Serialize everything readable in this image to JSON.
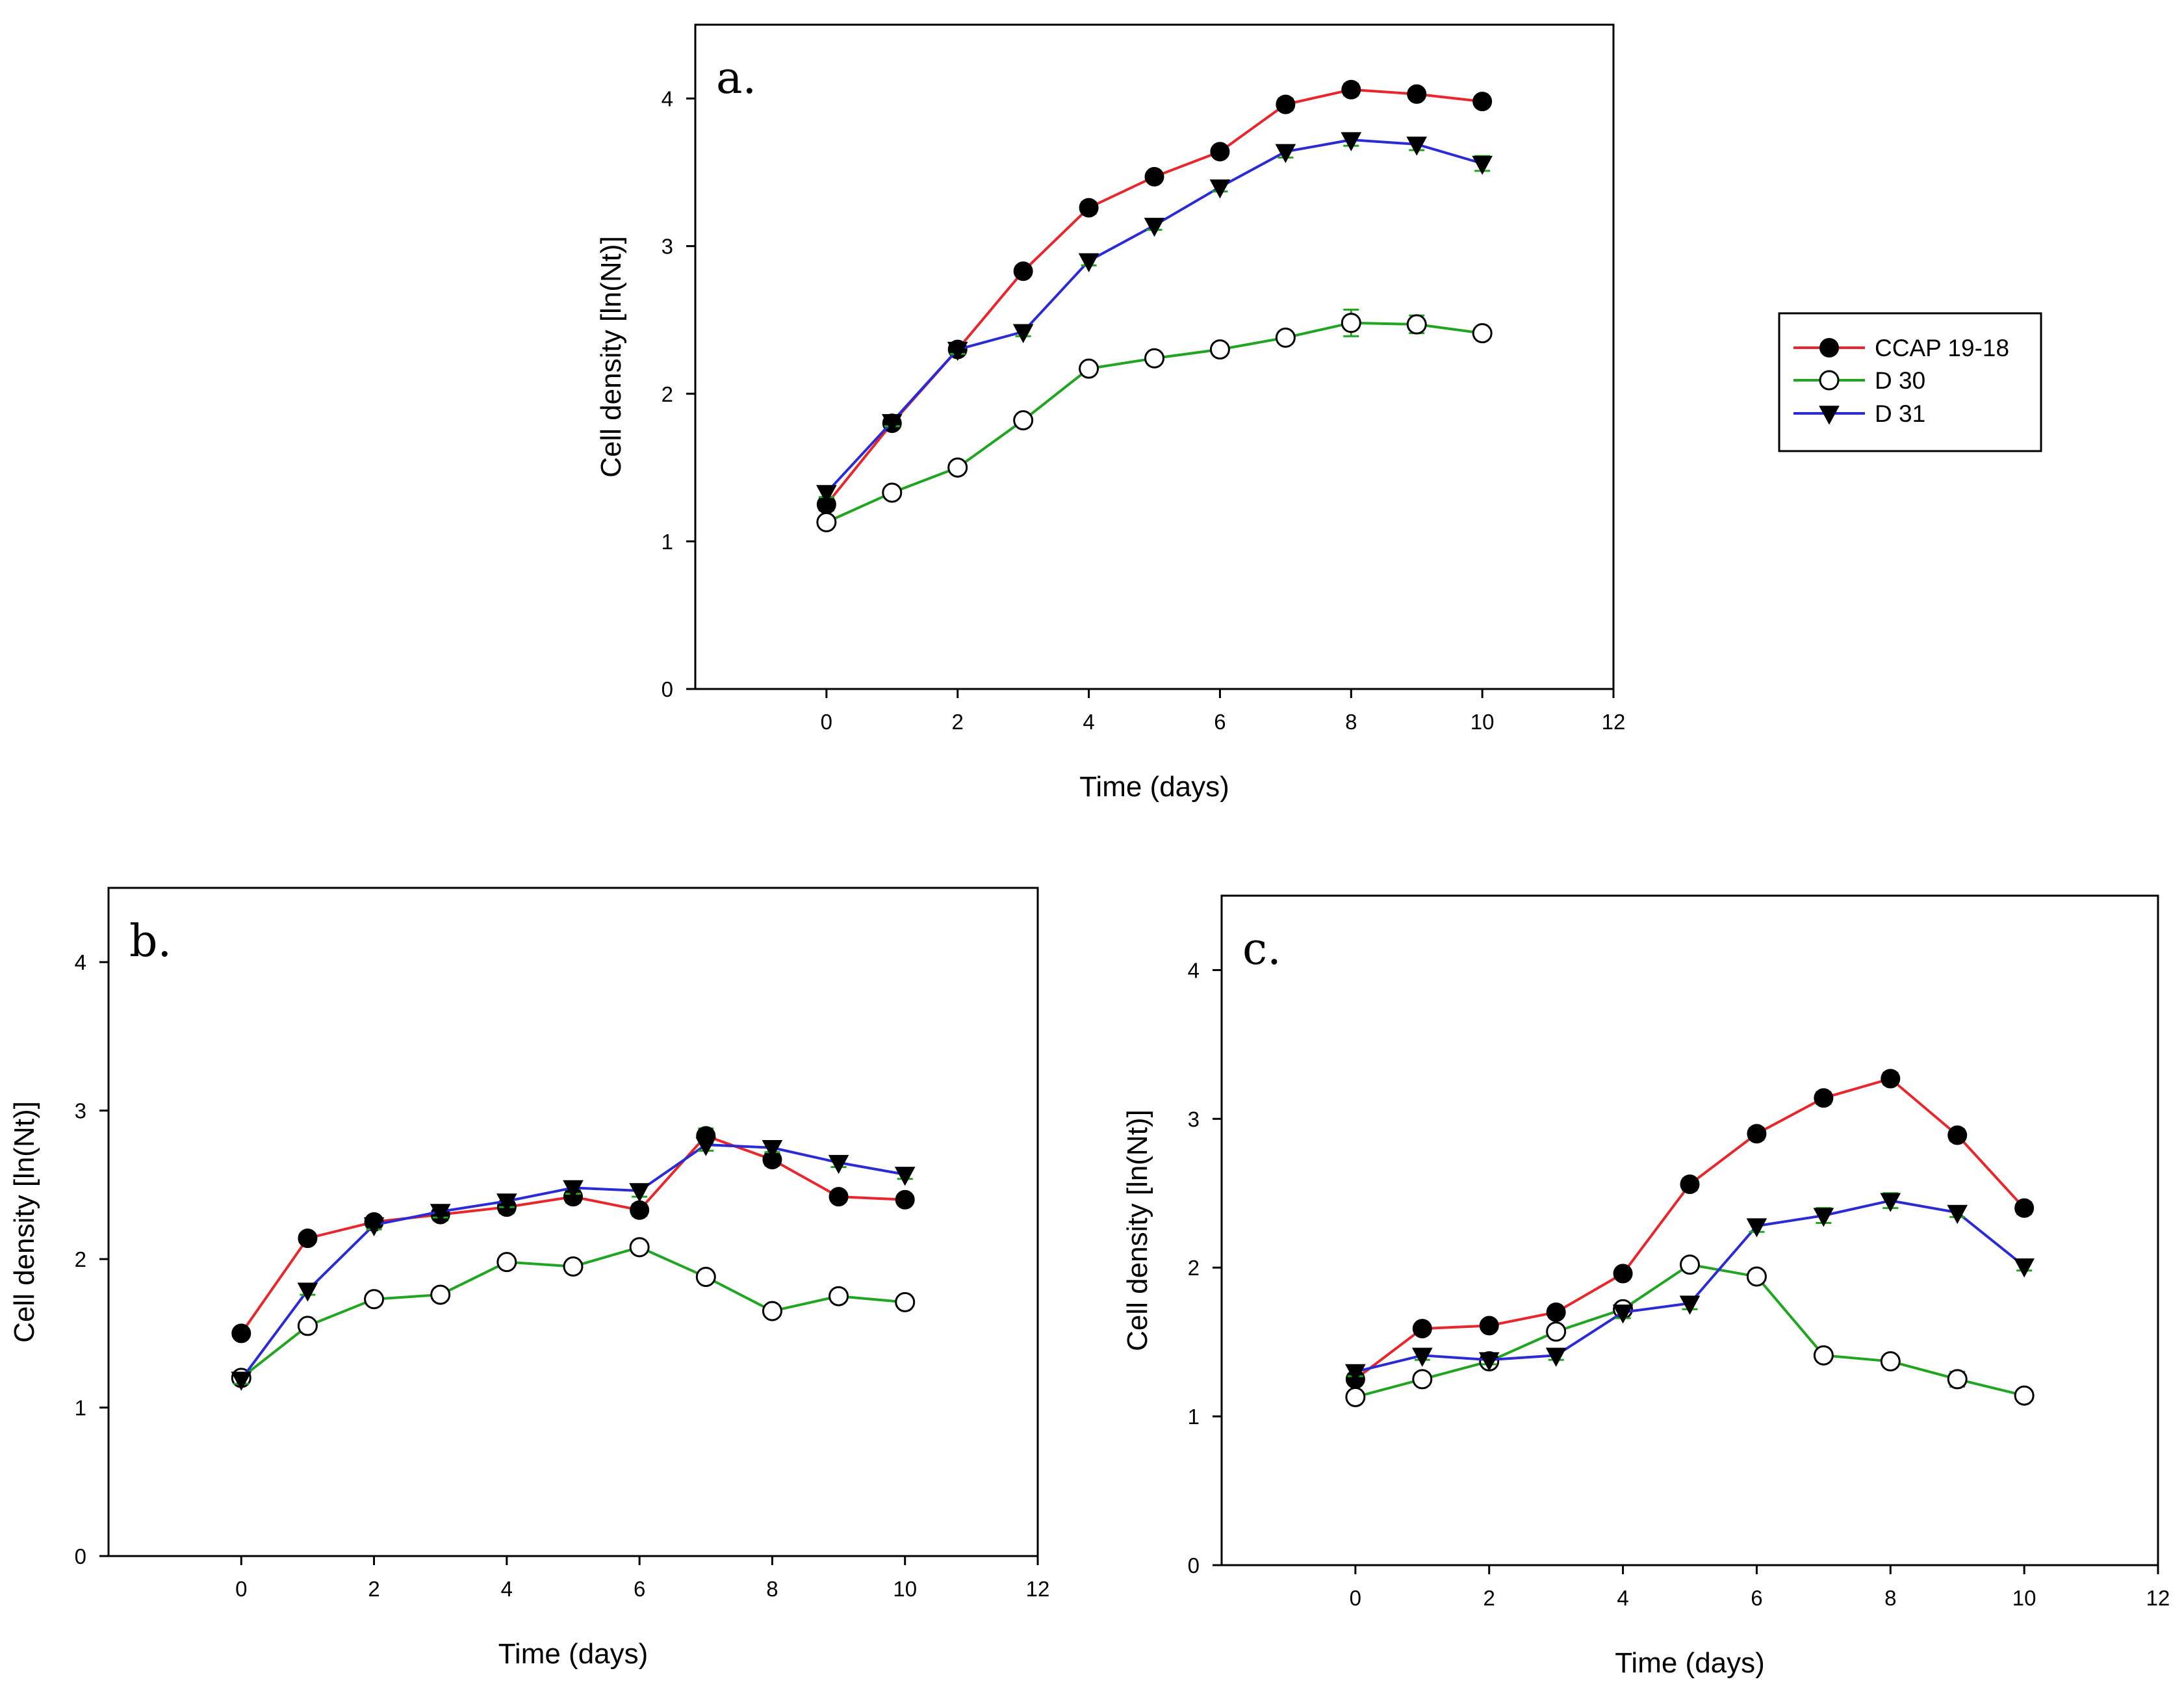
{
  "chart_data": [
    {
      "type": "line",
      "panel_label": "a.",
      "xlabel": "Time (days)",
      "ylabel": "Cell density [ln(Nt)]",
      "xlim": [
        -2,
        12
      ],
      "ylim": [
        0,
        4.5
      ],
      "xticks": [
        0,
        2,
        4,
        6,
        8,
        10,
        12
      ],
      "yticks": [
        0,
        1,
        2,
        3,
        4
      ],
      "x": [
        0,
        1,
        2,
        3,
        4,
        5,
        6,
        7,
        8,
        9,
        10
      ],
      "series": [
        {
          "name": "CCAP 19-18",
          "color": "#e8262b",
          "marker": "filled-circle",
          "values": [
            1.25,
            1.8,
            2.3,
            2.83,
            3.26,
            3.47,
            3.64,
            3.96,
            4.06,
            4.03,
            3.98
          ],
          "errors": [
            0.04,
            0.03,
            0.03,
            0.03,
            0.04,
            0.03,
            0.03,
            0.04,
            0.04,
            0.03,
            0.03
          ]
        },
        {
          "name": "D 30",
          "color": "#1fa51f",
          "marker": "open-circle",
          "values": [
            1.13,
            1.33,
            1.5,
            1.82,
            2.17,
            2.24,
            2.3,
            2.38,
            2.48,
            2.47,
            2.41
          ],
          "errors": [
            0.03,
            0.03,
            0.03,
            0.03,
            0.03,
            0.03,
            0.03,
            0.03,
            0.09,
            0.06,
            0.03
          ]
        },
        {
          "name": "D 31",
          "color": "#2b2bd6",
          "marker": "triangle-down",
          "values": [
            1.33,
            1.81,
            2.3,
            2.42,
            2.9,
            3.14,
            3.4,
            3.64,
            3.72,
            3.69,
            3.56
          ],
          "errors": [
            0.03,
            0.03,
            0.03,
            0.03,
            0.03,
            0.03,
            0.03,
            0.04,
            0.04,
            0.04,
            0.05
          ]
        }
      ]
    },
    {
      "type": "line",
      "panel_label": "b.",
      "xlabel": "Time (days)",
      "ylabel": "Cell density [ln(Nt)]",
      "xlim": [
        -2,
        12
      ],
      "ylim": [
        0,
        4.5
      ],
      "xticks": [
        0,
        2,
        4,
        6,
        8,
        10,
        12
      ],
      "yticks": [
        0,
        1,
        2,
        3,
        4
      ],
      "x": [
        0,
        1,
        2,
        3,
        4,
        5,
        6,
        7,
        8,
        9,
        10
      ],
      "series": [
        {
          "name": "CCAP 19-18",
          "color": "#e8262b",
          "marker": "filled-circle",
          "values": [
            1.5,
            2.14,
            2.25,
            2.3,
            2.35,
            2.42,
            2.33,
            2.83,
            2.67,
            2.42,
            2.4
          ],
          "errors": [
            0.03,
            0.03,
            0.03,
            0.04,
            0.04,
            0.04,
            0.04,
            0.05,
            0.04,
            0.03,
            0.03
          ]
        },
        {
          "name": "D 30",
          "color": "#1fa51f",
          "marker": "open-circle",
          "values": [
            1.2,
            1.55,
            1.73,
            1.76,
            1.98,
            1.95,
            2.08,
            1.88,
            1.65,
            1.75,
            1.71
          ],
          "errors": [
            0.03,
            0.03,
            0.03,
            0.04,
            0.03,
            0.04,
            0.03,
            0.03,
            0.03,
            0.03,
            0.03
          ]
        },
        {
          "name": "D 31",
          "color": "#2b2bd6",
          "marker": "triangle-down",
          "values": [
            1.19,
            1.79,
            2.23,
            2.32,
            2.39,
            2.48,
            2.46,
            2.77,
            2.75,
            2.65,
            2.57
          ],
          "errors": [
            0.03,
            0.03,
            0.03,
            0.04,
            0.04,
            0.04,
            0.04,
            0.04,
            0.03,
            0.03,
            0.03
          ]
        }
      ]
    },
    {
      "type": "line",
      "panel_label": "c.",
      "xlabel": "Time (days)",
      "ylabel": "Cell density [ln(Nt)]",
      "xlim": [
        -2,
        12
      ],
      "ylim": [
        0,
        4.5
      ],
      "xticks": [
        0,
        2,
        4,
        6,
        8,
        10,
        12
      ],
      "yticks": [
        0,
        1,
        2,
        3,
        4
      ],
      "x": [
        0,
        1,
        2,
        3,
        4,
        5,
        6,
        7,
        8,
        9,
        10
      ],
      "series": [
        {
          "name": "CCAP 19-18",
          "color": "#e8262b",
          "marker": "filled-circle",
          "values": [
            1.25,
            1.59,
            1.61,
            1.7,
            1.96,
            2.56,
            2.9,
            3.14,
            3.27,
            2.89,
            2.4
          ],
          "errors": [
            0.03,
            0.03,
            0.03,
            0.03,
            0.03,
            0.04,
            0.04,
            0.04,
            0.04,
            0.04,
            0.04
          ]
        },
        {
          "name": "D 30",
          "color": "#1fa51f",
          "marker": "open-circle",
          "values": [
            1.13,
            1.25,
            1.37,
            1.57,
            1.72,
            2.02,
            1.94,
            1.41,
            1.37,
            1.25,
            1.14
          ],
          "errors": [
            0.03,
            0.04,
            0.03,
            0.03,
            0.03,
            0.03,
            0.03,
            0.03,
            0.03,
            0.05,
            0.03
          ]
        },
        {
          "name": "D 31",
          "color": "#2b2bd6",
          "marker": "triangle-down",
          "values": [
            1.3,
            1.41,
            1.38,
            1.41,
            1.7,
            1.76,
            2.28,
            2.35,
            2.45,
            2.37,
            2.01
          ],
          "errors": [
            0.03,
            0.03,
            0.03,
            0.03,
            0.04,
            0.04,
            0.04,
            0.05,
            0.05,
            0.03,
            0.03
          ]
        }
      ]
    }
  ],
  "legend": {
    "entries": [
      "CCAP 19-18",
      "D 30",
      "D 31"
    ],
    "placement": "right of panel a"
  }
}
